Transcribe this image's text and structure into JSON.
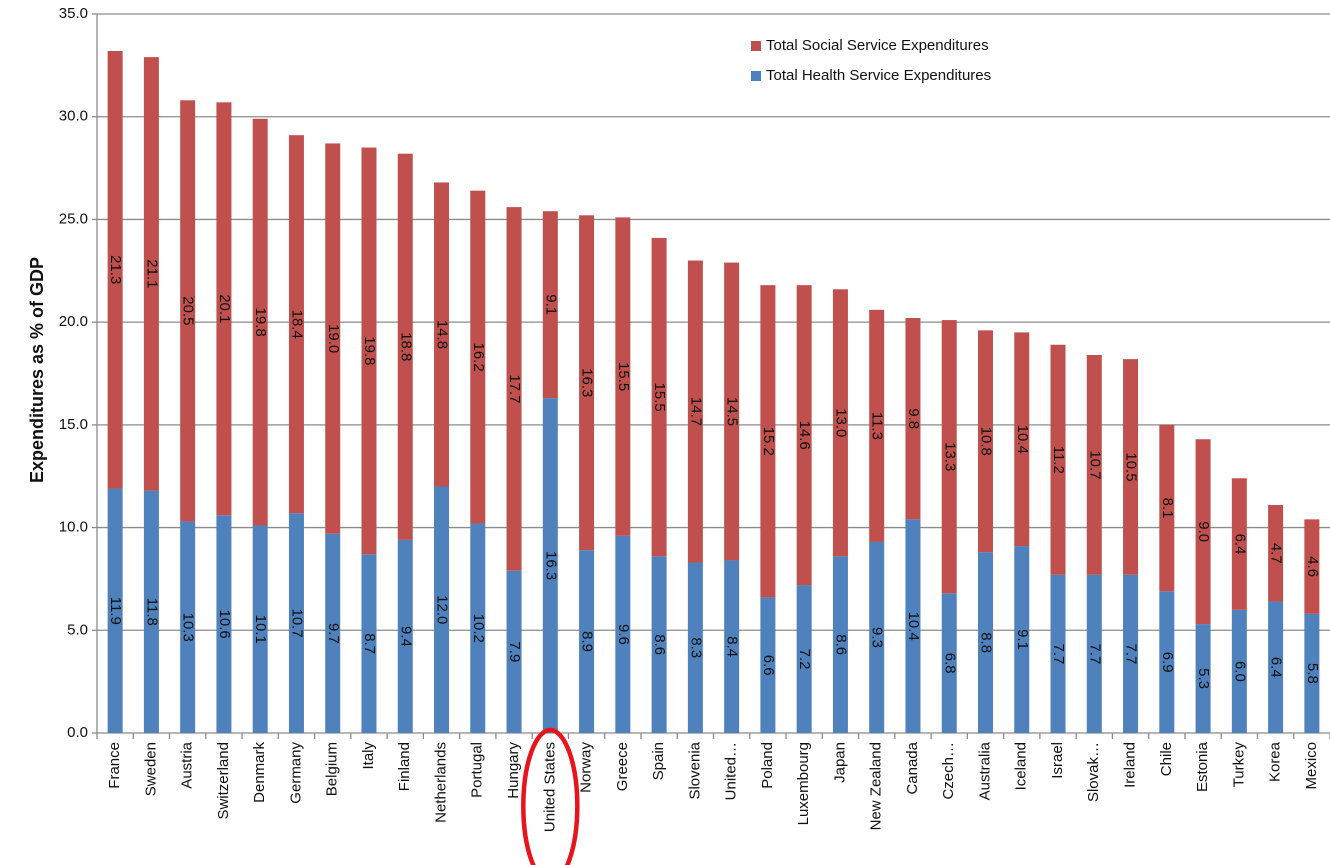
{
  "chart_data": {
    "type": "bar",
    "stacked": true,
    "ylabel": "Expenditures as % of GDP",
    "xlabel": "",
    "ylim": [
      0,
      35
    ],
    "yticks": [
      "0.0",
      "5.0",
      "10.0",
      "15.0",
      "20.0",
      "25.0",
      "30.0",
      "35.0"
    ],
    "grid": true,
    "legend_position": "top-right",
    "categories": [
      "France",
      "Sweden",
      "Austria",
      "Switzerland",
      "Denmark",
      "Germany",
      "Belgium",
      "Italy",
      "Finland",
      "Netherlands",
      "Portugal",
      "Hungary",
      "United States",
      "Norway",
      "Greece",
      "Spain",
      "Slovenia",
      "United…",
      "Poland",
      "Luxembourg",
      "Japan",
      "New Zealand",
      "Canada",
      "Czech…",
      "Australia",
      "Iceland",
      "Israel",
      "Slovak…",
      "Ireland",
      "Chile",
      "Estonia",
      "Turkey",
      "Korea",
      "Mexico"
    ],
    "series": [
      {
        "name": "Total Health Service Expenditures",
        "color": "#4f81bd",
        "values": [
          11.9,
          11.8,
          10.3,
          10.6,
          10.1,
          10.7,
          9.7,
          8.7,
          9.4,
          12.0,
          10.2,
          7.9,
          16.3,
          8.9,
          9.6,
          8.6,
          8.3,
          8.4,
          6.6,
          7.2,
          8.6,
          9.3,
          10.4,
          6.8,
          8.8,
          9.1,
          7.7,
          7.7,
          7.7,
          6.9,
          5.3,
          6.0,
          6.4,
          5.8
        ]
      },
      {
        "name": "Total Social Service Expenditures",
        "color": "#c0504d",
        "values": [
          21.3,
          21.1,
          20.5,
          20.1,
          19.8,
          18.4,
          19.0,
          19.8,
          18.8,
          14.8,
          16.2,
          17.7,
          9.1,
          16.3,
          15.5,
          15.5,
          14.7,
          14.5,
          15.2,
          14.6,
          13.0,
          11.3,
          9.8,
          13.3,
          10.8,
          10.4,
          11.2,
          10.7,
          10.5,
          8.1,
          9.0,
          6.4,
          4.7,
          4.6
        ]
      }
    ],
    "legend_order": [
      "Total Social Service Expenditures",
      "Total Health Service Expenditures"
    ],
    "highlight": {
      "category": "United States",
      "shape": "ellipse",
      "color": "#e8141c"
    }
  }
}
